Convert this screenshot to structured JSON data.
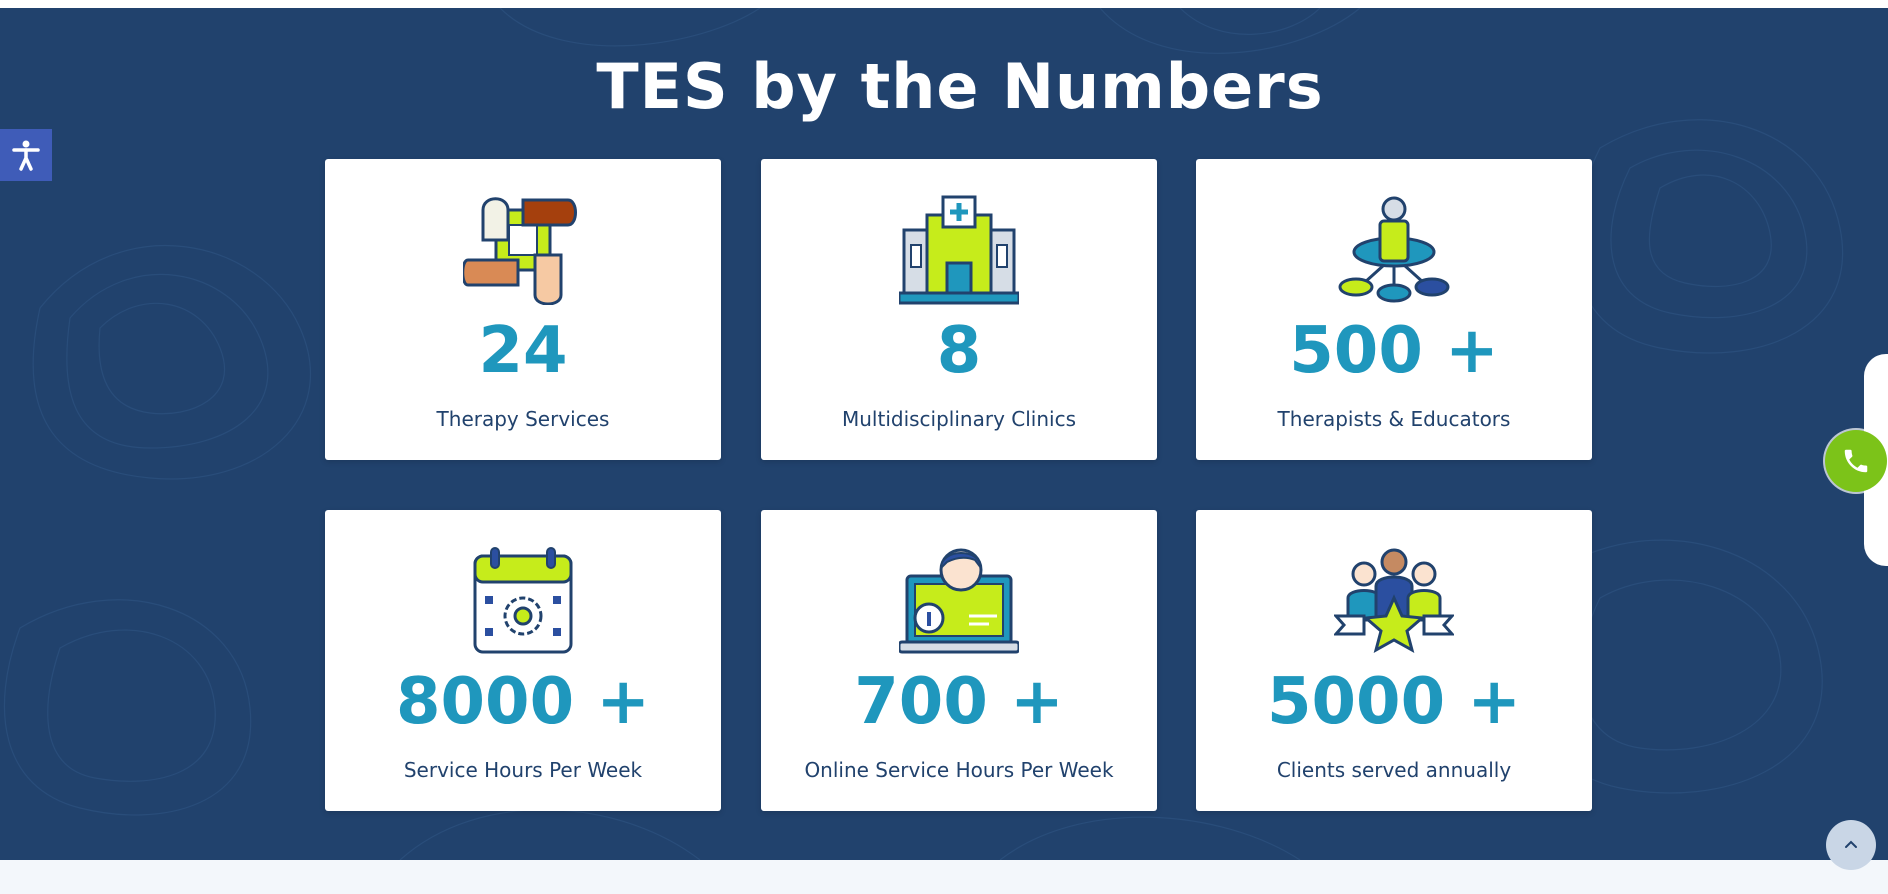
{
  "section": {
    "title": "TES by the Numbers"
  },
  "stats": [
    {
      "value": "24",
      "label": "Therapy Services",
      "icon": "hands-circle-icon"
    },
    {
      "value": "8",
      "label": "Multidisciplinary Clinics",
      "icon": "clinic-building-icon"
    },
    {
      "value": "500 +",
      "label": "Therapists & Educators",
      "icon": "team-network-icon"
    },
    {
      "value": "8000 +",
      "label": "Service Hours Per Week",
      "icon": "calendar-gear-icon"
    },
    {
      "value": "700 +",
      "label": "Online Service Hours Per Week",
      "icon": "online-session-icon"
    },
    {
      "value": "5000 +",
      "label": "Clients served annually",
      "icon": "clients-star-icon"
    }
  ],
  "floating": {
    "accessibility": "accessibility-icon",
    "call": "phone-icon",
    "scroll_top": "chevron-up-icon"
  },
  "colors": {
    "background": "#21426d",
    "number": "#1f97bd",
    "label": "#21426d",
    "accent": "#c6ec1b",
    "call": "#7cc319",
    "access": "#3f5cb8"
  }
}
